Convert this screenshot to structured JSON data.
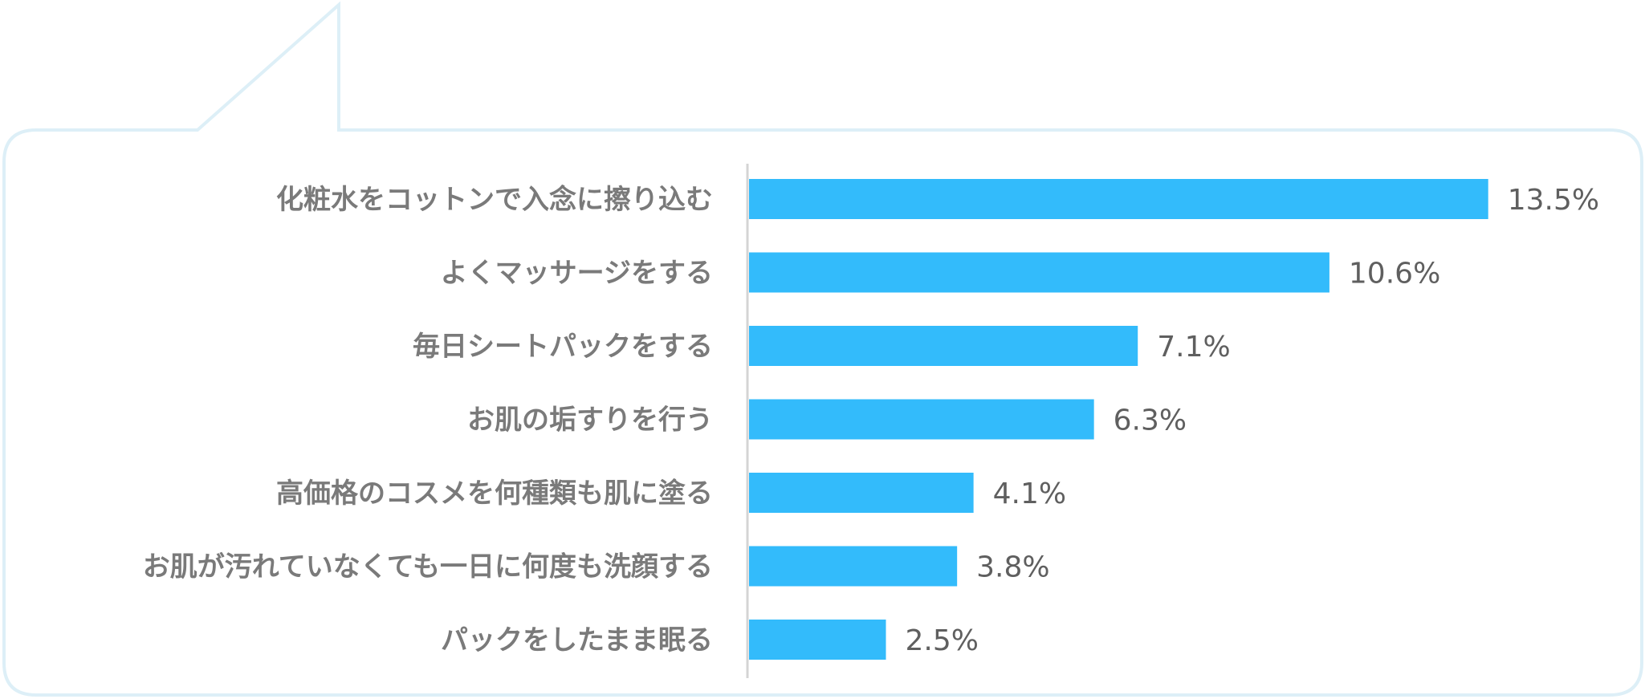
{
  "chart_data": {
    "type": "bar",
    "orientation": "horizontal",
    "categories": [
      "化粧水をコットンで入念に擦り込む",
      "よくマッサージをする",
      "毎日シートパックをする",
      "お肌の垢すりを行う",
      "高価格のコスメを何種類も肌に塗る",
      "お肌が汚れていなくても一日に何度も洗顔する",
      "パックをしたまま眠る"
    ],
    "values": [
      13.5,
      10.6,
      7.1,
      6.3,
      4.1,
      3.8,
      2.5
    ],
    "value_labels": [
      "13.5%",
      "10.6%",
      "7.1%",
      "6.3%",
      "4.1%",
      "3.8%",
      "2.5%"
    ],
    "xlim": [
      0,
      16
    ],
    "title": "",
    "xlabel": "",
    "ylabel": "",
    "grid": false,
    "legend": "none",
    "colors": {
      "bar": "#33bbfb",
      "frame": "#ddeff7",
      "axis": "#d4d4d4",
      "label": "#7a7a7a",
      "value": "#5f5f5f"
    }
  }
}
